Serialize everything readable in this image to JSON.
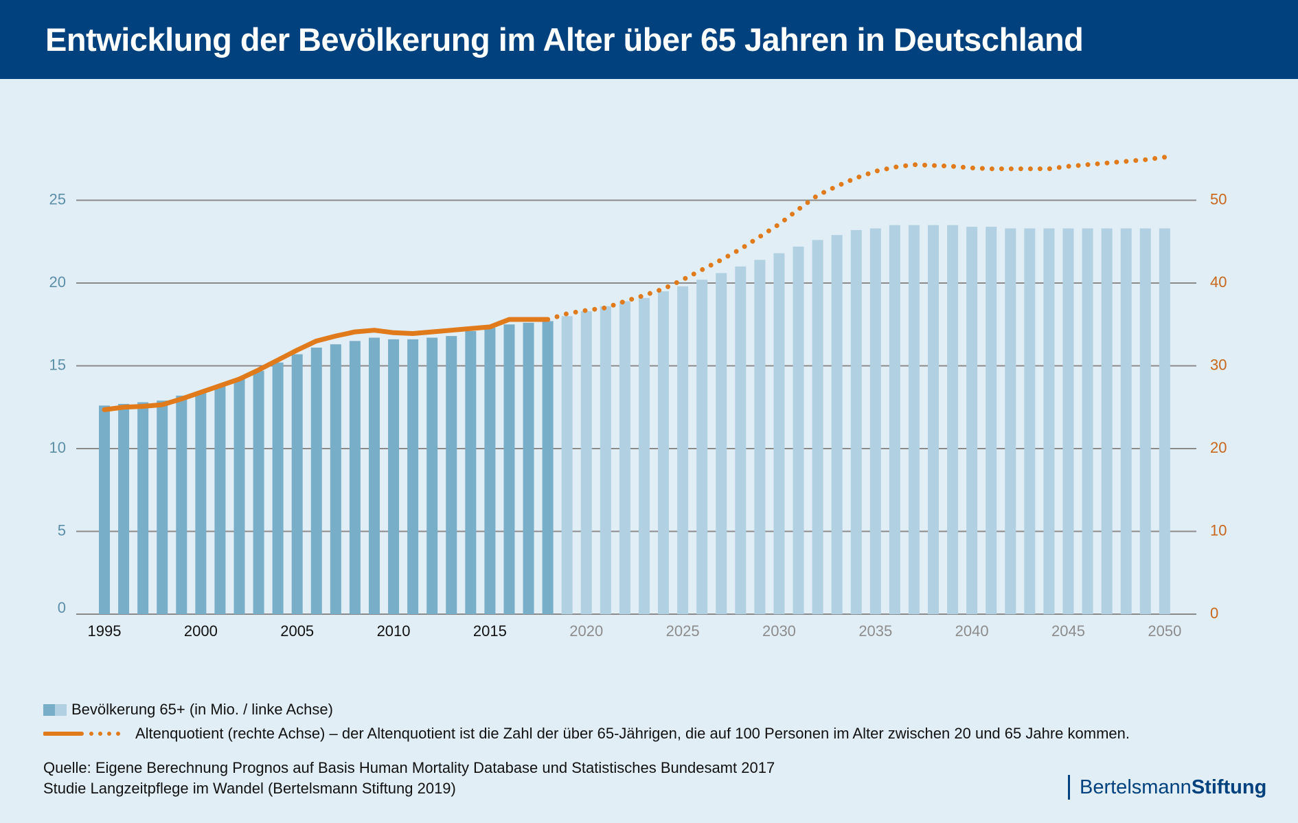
{
  "header": {
    "title": "Entwicklung der Bevölkerung im Alter über 65 Jahren in Deutschland"
  },
  "chart_data": {
    "type": "bar+line",
    "title": "Entwicklung der Bevölkerung im Alter über 65 Jahren in Deutschland",
    "x": [
      1995,
      1996,
      1997,
      1998,
      1999,
      2000,
      2001,
      2002,
      2003,
      2004,
      2005,
      2006,
      2007,
      2008,
      2009,
      2010,
      2011,
      2012,
      2013,
      2014,
      2015,
      2016,
      2017,
      2018,
      2019,
      2020,
      2021,
      2022,
      2023,
      2024,
      2025,
      2026,
      2027,
      2028,
      2029,
      2030,
      2031,
      2032,
      2033,
      2034,
      2035,
      2036,
      2037,
      2038,
      2039,
      2040,
      2041,
      2042,
      2043,
      2044,
      2045,
      2046,
      2047,
      2048,
      2049,
      2050
    ],
    "last_observed_year": 2018,
    "xticks": [
      "1995",
      "2000",
      "2005",
      "2010",
      "2015",
      "2020",
      "2025",
      "2030",
      "2035",
      "2040",
      "2045",
      "2050"
    ],
    "y_left": {
      "ticks": [
        "0",
        "5",
        "10",
        "15",
        "20",
        "25"
      ],
      "range": [
        0,
        28
      ]
    },
    "y_right": {
      "ticks": [
        "0",
        "10",
        "20",
        "30",
        "40",
        "50"
      ],
      "range": [
        0,
        56
      ]
    },
    "grid": true,
    "series": [
      {
        "name": "Bevölkerung 65+ (in Mio. / linke Achse)",
        "type": "bar",
        "axis": "left",
        "values": [
          12.6,
          12.7,
          12.8,
          12.9,
          13.2,
          13.4,
          13.8,
          14.2,
          14.7,
          15.2,
          15.7,
          16.1,
          16.3,
          16.5,
          16.7,
          16.6,
          16.6,
          16.7,
          16.8,
          17.1,
          17.3,
          17.5,
          17.6,
          17.7,
          18.0,
          18.3,
          18.6,
          18.9,
          19.1,
          19.5,
          19.8,
          20.2,
          20.6,
          21.0,
          21.4,
          21.8,
          22.2,
          22.6,
          22.9,
          23.2,
          23.3,
          23.5,
          23.5,
          23.5,
          23.5,
          23.4,
          23.4,
          23.3,
          23.3,
          23.3,
          23.3,
          23.3,
          23.3,
          23.3,
          23.3,
          23.3
        ]
      },
      {
        "name": "Altenquotient (rechte Achse) – der Altenquotient ist die Zahl der über 65-Jährigen, die auf 100 Personen im Alter zwischen 20 und 65 Jahre kommen.",
        "type": "line",
        "axis": "right",
        "values": [
          24.7,
          25.0,
          25.1,
          25.3,
          26.0,
          26.8,
          27.6,
          28.4,
          29.5,
          30.7,
          31.9,
          33.0,
          33.6,
          34.1,
          34.3,
          34.0,
          33.9,
          34.1,
          34.3,
          34.5,
          34.7,
          35.6,
          35.6,
          35.6,
          36.3,
          36.7,
          37.0,
          37.8,
          38.5,
          39.3,
          40.4,
          41.6,
          42.8,
          44.1,
          45.6,
          47.1,
          48.9,
          50.6,
          51.7,
          52.7,
          53.5,
          54.0,
          54.3,
          54.2,
          54.1,
          53.9,
          53.8,
          53.8,
          53.8,
          53.8,
          54.1,
          54.3,
          54.5,
          54.7,
          54.9,
          55.2
        ]
      }
    ],
    "legend_placement": "bottom-left"
  },
  "legend": {
    "bars_label": "Bevölkerung 65+ (in Mio. / linke Achse)",
    "line_label": "Altenquotient (rechte Achse) – der Altenquotient ist die Zahl der über 65-Jährigen, die auf 100 Personen im Alter zwischen 20 und 65 Jahre kommen."
  },
  "source": {
    "line1": "Quelle: Eigene Berechnung Prognos auf Basis Human Mortality Database und Statistisches Bundesamt 2017",
    "line2": "Studie Langzeitpflege im Wandel (Bertelsmann Stiftung 2019)"
  },
  "logo": {
    "part1": "Bertelsmann",
    "part2": "Stiftung"
  },
  "colors": {
    "header": "#00417e",
    "bar_observed": "#79aec9",
    "bar_projected": "#b1d0e1",
    "line": "#e07a1a",
    "right_axis": "#c8671c",
    "left_axis": "#5d8ea8",
    "grid": "#8a8a8a"
  }
}
